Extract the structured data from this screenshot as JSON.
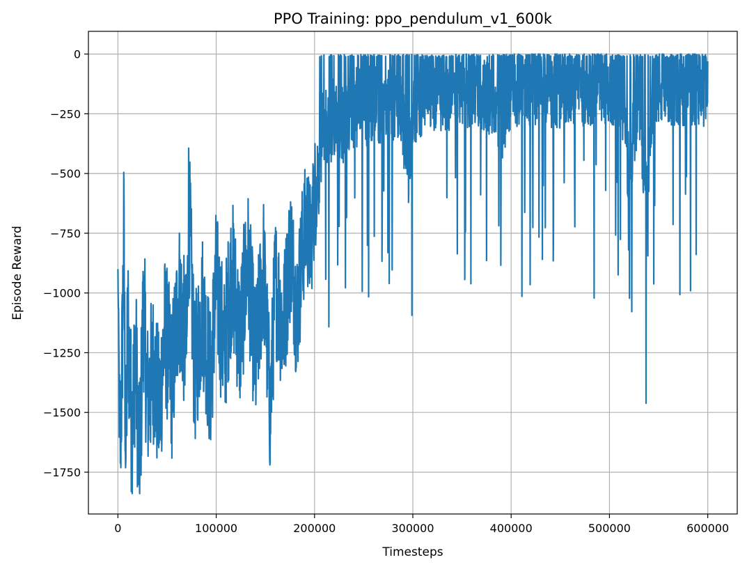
{
  "chart_data": {
    "type": "line",
    "title": "PPO Training: ppo_pendulum_v1_600k",
    "xlabel": "Timesteps",
    "ylabel": "Episode Reward",
    "xlim": [
      -30000,
      630000
    ],
    "ylim": [
      -1925,
      95
    ],
    "grid": true,
    "legend": "none",
    "color": "#1f77b4",
    "x_ticks": [
      0,
      100000,
      200000,
      300000,
      400000,
      500000,
      600000
    ],
    "x_tick_labels": [
      "0",
      "100000",
      "200000",
      "300000",
      "400000",
      "500000",
      "600000"
    ],
    "y_ticks": [
      0,
      -250,
      -500,
      -750,
      -1000,
      -1250,
      -1500,
      -1750
    ],
    "y_tick_labels": [
      "0",
      "−250",
      "−500",
      "−750",
      "−1000",
      "−1250",
      "−1500",
      "−1750"
    ],
    "series": [
      {
        "x": [
          0,
          2000,
          4000,
          6000,
          8000,
          10000,
          14000,
          18000,
          22000,
          26000,
          30000,
          36000,
          42000,
          48000,
          55000,
          62000,
          70000,
          72000,
          78000,
          86000,
          94000,
          100000,
          108000,
          116000,
          124000,
          132000,
          140000,
          148000,
          155000,
          160000,
          168000,
          176000,
          182000,
          188000,
          192000,
          196000,
          200000,
          204000,
          206000,
          210000,
          215000,
          222000,
          230000,
          240000,
          250000,
          262000,
          275000,
          288000,
          296000,
          300000,
          304000,
          310000,
          320000,
          340000,
          360000,
          380000,
          392000,
          400000,
          420000,
          440000,
          460000,
          480000,
          500000,
          512000,
          520000,
          530000,
          537000,
          545000,
          560000,
          580000,
          594000,
          600000
        ],
        "y": [
          -900,
          -1700,
          -1350,
          -780,
          -1720,
          -1100,
          -1550,
          -1250,
          -1750,
          -1050,
          -1450,
          -1300,
          -1500,
          -1150,
          -1380,
          -1000,
          -1250,
          -620,
          -1350,
          -1050,
          -1380,
          -950,
          -1250,
          -900,
          -1200,
          -850,
          -1300,
          -880,
          -1500,
          -950,
          -1150,
          -800,
          -1100,
          -800,
          -700,
          -800,
          -600,
          -480,
          -380,
          -320,
          -280,
          -260,
          -300,
          -220,
          -240,
          -200,
          -230,
          -210,
          -500,
          -260,
          -200,
          -180,
          -170,
          -160,
          -150,
          -180,
          -300,
          -150,
          -140,
          -150,
          -150,
          -140,
          -130,
          -160,
          -500,
          -150,
          -600,
          -140,
          -150,
          -140,
          -160,
          -140
        ],
        "noise": [
          0,
          330,
          340,
          340,
          340,
          340,
          340,
          340,
          340,
          340,
          340,
          330,
          330,
          330,
          330,
          330,
          320,
          320,
          320,
          320,
          320,
          320,
          320,
          320,
          310,
          310,
          310,
          310,
          300,
          300,
          300,
          290,
          290,
          280,
          270,
          260,
          250,
          240,
          200,
          190,
          180,
          170,
          170,
          170,
          170,
          170,
          170,
          160,
          160,
          160,
          160,
          160,
          160,
          160,
          160,
          160,
          160,
          160,
          160,
          160,
          160,
          160,
          160,
          160,
          160,
          160,
          160,
          160,
          160,
          160,
          160,
          150
        ]
      }
    ]
  }
}
